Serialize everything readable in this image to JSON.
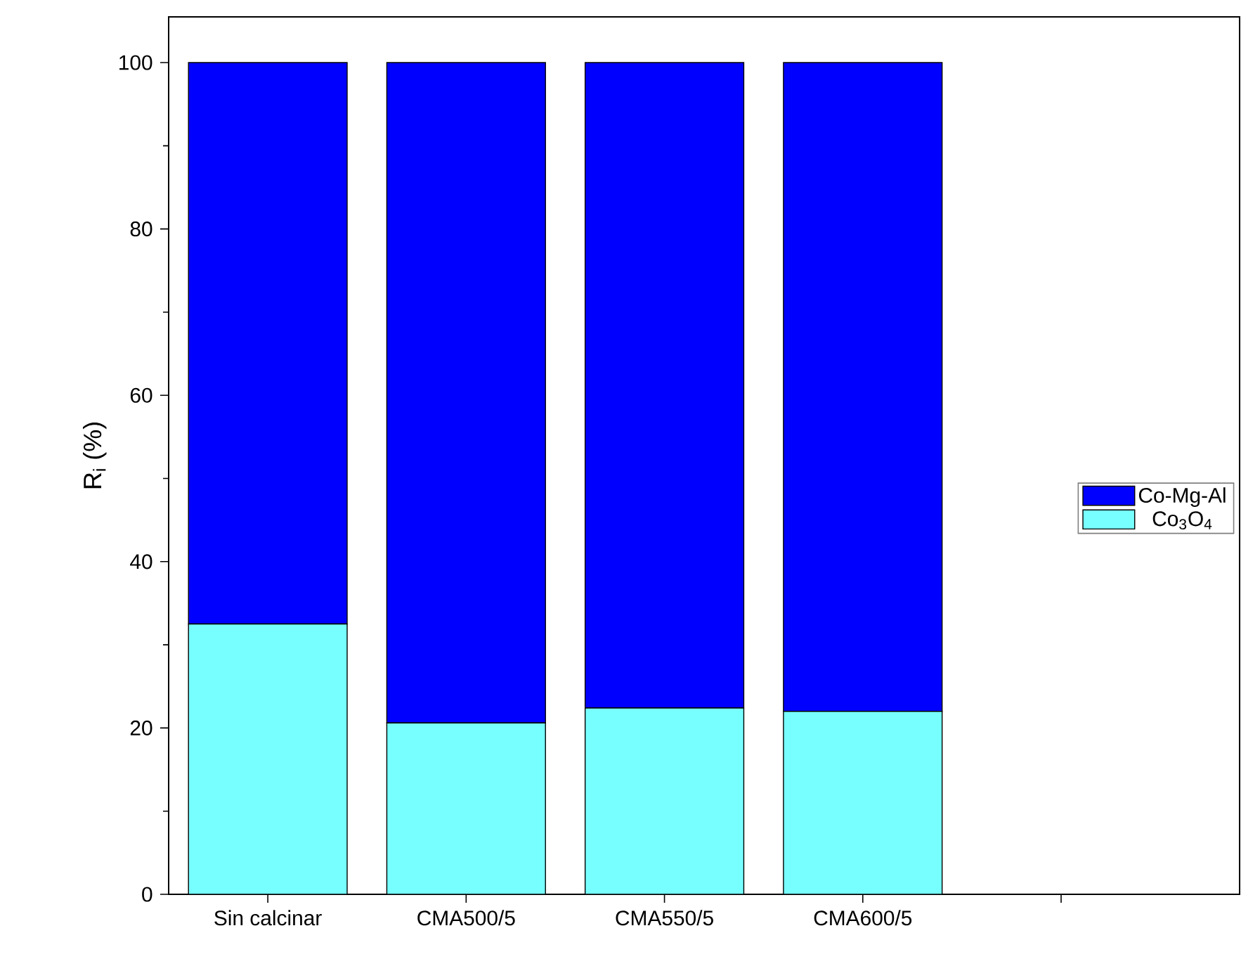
{
  "chart_data": {
    "type": "bar",
    "stacked": true,
    "ylabel": "R$_{i}$ (%)",
    "categories": [
      "Sin calcinar",
      "CMA500/5",
      "CMA550/5",
      "CMA600/5",
      null
    ],
    "series": [
      {
        "name": "Co$_{3}$O$_{4}$",
        "color": "#77ffff",
        "values": [
          32.5,
          20.6,
          22.4,
          22.0,
          null
        ]
      },
      {
        "name": "Co-Mg-Al",
        "color": "#0000ff",
        "values": [
          67.5,
          79.4,
          77.6,
          78.0,
          null
        ]
      }
    ],
    "ylim": [
      0,
      105.5
    ],
    "yticks": [
      0,
      20,
      40,
      60,
      80,
      100
    ],
    "legend": "right"
  }
}
